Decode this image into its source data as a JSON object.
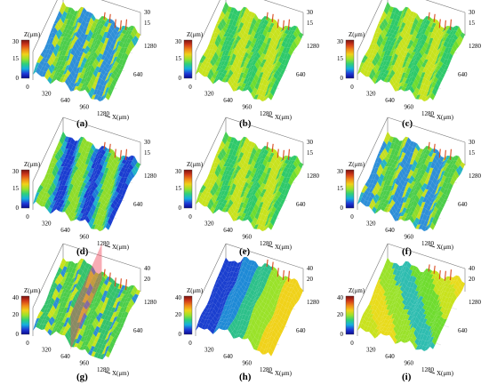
{
  "colorbar_stops": [
    "#0b0b8f",
    "#1f3bd8",
    "#16b0e0",
    "#2fd07a",
    "#9ae22a",
    "#f0d21a",
    "#f08a1a",
    "#d23a1a",
    "#7a1010"
  ],
  "panels": [
    {
      "id": "a",
      "caption": "(a)",
      "z_label": "Z(μm)",
      "x_label": "X(μm)",
      "scale": {
        "max": "30",
        "mid": "15",
        "min": "0"
      },
      "z_axis_ticks": [
        "30",
        "15"
      ],
      "y_ticks": [
        "1280",
        "640"
      ],
      "x_ticks": [
        "0",
        "320",
        "640",
        "960",
        "1280"
      ],
      "surface_theme": "mixed"
    },
    {
      "id": "b",
      "caption": "(b)",
      "z_label": "Z(μm)",
      "x_label": "X(μm)",
      "scale": {
        "max": "30",
        "mid": "15",
        "min": "0"
      },
      "z_axis_ticks": [
        "30",
        "15"
      ],
      "y_ticks": [
        "1280",
        "640"
      ],
      "x_ticks": [
        "0",
        "320",
        "640",
        "960",
        "1280"
      ],
      "surface_theme": "green"
    },
    {
      "id": "c",
      "caption": "(c)",
      "z_label": "Z(μm)",
      "x_label": "X(μm)",
      "scale": {
        "max": "30",
        "mid": "15",
        "min": "0"
      },
      "z_axis_ticks": [
        "30",
        "15"
      ],
      "y_ticks": [
        "1280",
        "640"
      ],
      "x_ticks": [
        "0",
        "320",
        "640",
        "960",
        "1280"
      ],
      "surface_theme": "green"
    },
    {
      "id": "d",
      "caption": "(d)",
      "z_label": "Z(μm)",
      "x_label": "X(μm)",
      "scale": {
        "max": "30",
        "mid": "15",
        "min": "0"
      },
      "z_axis_ticks": [
        "30",
        "15"
      ],
      "y_ticks": [
        "1280",
        "640"
      ],
      "x_ticks": [
        "0",
        "320",
        "640",
        "960",
        "1280"
      ],
      "surface_theme": "blue"
    },
    {
      "id": "e",
      "caption": "(e)",
      "z_label": "Z(μm)",
      "x_label": "X(μm)",
      "scale": {
        "max": "30",
        "mid": "15",
        "min": "0"
      },
      "z_axis_ticks": [
        "30",
        "15"
      ],
      "y_ticks": [
        "1280",
        "640"
      ],
      "x_ticks": [
        "0",
        "320",
        "640",
        "960",
        "1280"
      ],
      "surface_theme": "green"
    },
    {
      "id": "f",
      "caption": "(f)",
      "z_label": "Z(μm)",
      "x_label": "X(μm)",
      "scale": {
        "max": "30",
        "mid": "15",
        "min": "0"
      },
      "z_axis_ticks": [
        "30",
        "15"
      ],
      "y_ticks": [
        "1280",
        "640"
      ],
      "x_ticks": [
        "0",
        "320",
        "640",
        "960",
        "1280"
      ],
      "surface_theme": "mixed"
    },
    {
      "id": "g",
      "caption": "(g)",
      "z_label": "Z(μm)",
      "x_label": "X(μm)",
      "scale": {
        "max": "40",
        "mid": "20",
        "min": "0"
      },
      "z_axis_ticks": [
        "40",
        "20"
      ],
      "y_ticks": [
        "1280",
        "640"
      ],
      "x_ticks": [
        "0",
        "320",
        "640",
        "960",
        "1280"
      ],
      "surface_theme": "gplane"
    },
    {
      "id": "h",
      "caption": "(h)",
      "z_label": "Z(μm)",
      "x_label": "X(μm)",
      "scale": {
        "max": "40",
        "mid": "20",
        "min": "0"
      },
      "z_axis_ticks": [
        "40",
        "20"
      ],
      "y_ticks": [
        "1280",
        "640"
      ],
      "x_ticks": [
        "0",
        "320",
        "640",
        "960",
        "1280"
      ],
      "surface_theme": "valley"
    },
    {
      "id": "i",
      "caption": "(i)",
      "z_label": "Z(μm)",
      "x_label": "X(μm)",
      "scale": {
        "max": "40",
        "mid": "20",
        "min": "0"
      },
      "z_axis_ticks": [
        "40",
        "20"
      ],
      "y_ticks": [
        "1280",
        "640"
      ],
      "x_ticks": [
        "0",
        "320",
        "640",
        "960",
        "1280"
      ],
      "surface_theme": "yellow"
    }
  ]
}
